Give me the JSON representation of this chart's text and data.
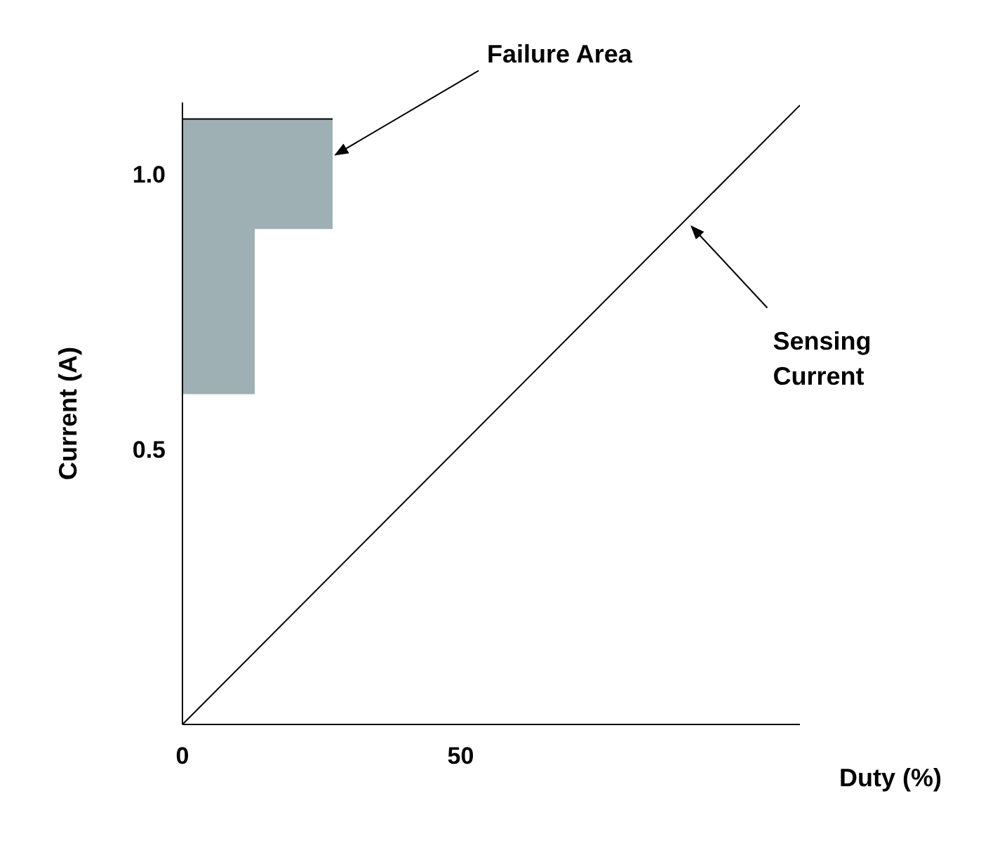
{
  "chart_data": {
    "type": "line",
    "xlabel": "Duty (%)",
    "ylabel": "Current (A)",
    "xlim": [
      0,
      111
    ],
    "ylim": [
      0,
      1.13
    ],
    "xticks": [
      0,
      50
    ],
    "yticks": [
      0.5,
      {
        "value": 1,
        "label": "1.0"
      }
    ],
    "grid": false,
    "legend": false,
    "marker": "none",
    "line_style": "solid",
    "series": [
      {
        "color": "#000000",
        "x": [
          0,
          13,
          13,
          27
        ],
        "values": [
          1.1,
          1.1,
          1.1,
          1.1
        ],
        "lower": [
          0.6,
          0.6,
          0.9,
          0.9
        ],
        "upper": [
          1.1,
          1.1,
          1.1,
          1.1
        ]
      },
      {
        "color": "#000000",
        "x": [
          0,
          111
        ],
        "values": [
          0,
          1.125
        ]
      }
    ],
    "annotations": [
      {
        "text": "Failure Area",
        "x": 27,
        "y": 1.04
      },
      {
        "text": "Sensing Current",
        "x": 91,
        "y": 0.91
      }
    ]
  }
}
